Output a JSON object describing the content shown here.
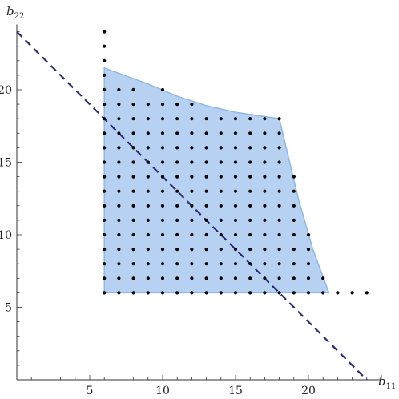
{
  "chart_data": {
    "type": "scatter",
    "xlabel": "b",
    "xlabel_sub": "11",
    "ylabel": "b",
    "ylabel_sub": "22",
    "xlim": [
      0,
      25
    ],
    "ylim": [
      0,
      24.5
    ],
    "xticks": [
      5,
      10,
      15,
      20
    ],
    "yticks": [
      5,
      10,
      15,
      20
    ],
    "grid": false,
    "colors": {
      "region_fill": "#a9c9ee",
      "region_stroke": "#8fb8e6",
      "points": "#000000",
      "dashed_line": "#2e2a74",
      "axes": "#333333"
    },
    "region": {
      "boundary": [
        [
          6,
          6
        ],
        [
          21.4,
          6
        ],
        [
          20.3,
          9
        ],
        [
          19.3,
          12.5
        ],
        [
          18,
          18
        ],
        [
          17,
          18.15
        ],
        [
          15,
          18.45
        ],
        [
          13,
          18.9
        ],
        [
          11,
          19.55
        ],
        [
          9,
          20.4
        ],
        [
          6,
          21.5
        ],
        [
          6,
          6
        ]
      ]
    },
    "dashed_line": {
      "points": [
        [
          0,
          24
        ],
        [
          24,
          0
        ]
      ]
    },
    "point_rows": [
      {
        "y": 6,
        "x_min": 6,
        "x_max": 24
      },
      {
        "y": 7,
        "x_min": 6,
        "x_max": 21
      },
      {
        "y": 8,
        "x_min": 6,
        "x_max": 20
      },
      {
        "y": 9,
        "x_min": 6,
        "x_max": 20
      },
      {
        "y": 10,
        "x_min": 6,
        "x_max": 20
      },
      {
        "y": 11,
        "x_min": 6,
        "x_max": 19
      },
      {
        "y": 12,
        "x_min": 6,
        "x_max": 19
      },
      {
        "y": 13,
        "x_min": 6,
        "x_max": 19
      },
      {
        "y": 14,
        "x_min": 6,
        "x_max": 19
      },
      {
        "y": 15,
        "x_min": 6,
        "x_max": 18
      },
      {
        "y": 16,
        "x_min": 6,
        "x_max": 18
      },
      {
        "y": 17,
        "x_min": 6,
        "x_max": 18
      },
      {
        "y": 18,
        "x_min": 6,
        "x_max": 18
      },
      {
        "y": 19,
        "x_min": 6,
        "x_max": 12
      },
      {
        "y": 20,
        "x_min": 6,
        "x_max": 8
      },
      {
        "y": 21,
        "x_min": 6,
        "x_max": 6
      },
      {
        "y": 22,
        "x_min": 6,
        "x_max": 6
      },
      {
        "y": 23,
        "x_min": 6,
        "x_max": 6
      },
      {
        "y": 24,
        "x_min": 6,
        "x_max": 6
      }
    ],
    "extra_points": [
      [
        10,
        20
      ]
    ]
  }
}
